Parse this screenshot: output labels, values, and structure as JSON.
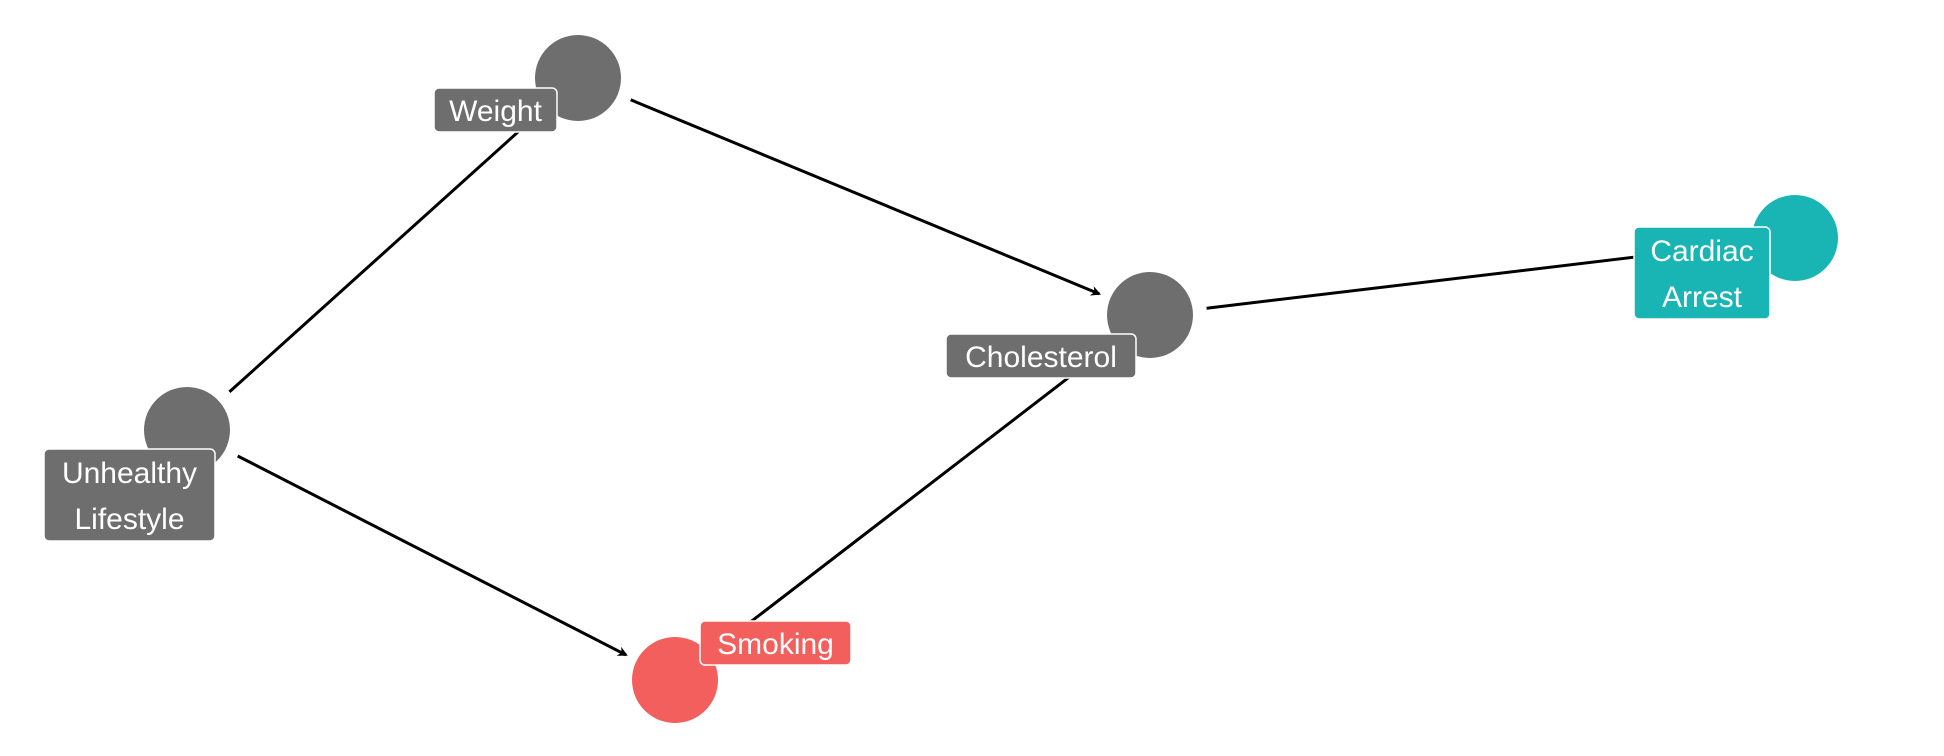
{
  "diagram": {
    "type": "dag",
    "colors": {
      "default": "#6e6e6e",
      "exposure": "#f25f5c",
      "outcome": "#19b5b5",
      "edge": "#000000",
      "label_text": "#ffffff"
    },
    "nodes": [
      {
        "id": "weight",
        "label_lines": [
          "Weight"
        ],
        "role": "default"
      },
      {
        "id": "unhealthy_lifestyle",
        "label_lines": [
          "Unhealthy",
          "Lifestyle"
        ],
        "role": "default"
      },
      {
        "id": "cholesterol",
        "label_lines": [
          "Cholesterol"
        ],
        "role": "default"
      },
      {
        "id": "smoking",
        "label_lines": [
          "Smoking"
        ],
        "role": "exposure"
      },
      {
        "id": "cardiac_arrest",
        "label_lines": [
          "Cardiac",
          "Arrest"
        ],
        "role": "outcome"
      }
    ],
    "edges": [
      {
        "from": "unhealthy_lifestyle",
        "to": "weight",
        "directed": true
      },
      {
        "from": "unhealthy_lifestyle",
        "to": "smoking",
        "directed": true
      },
      {
        "from": "weight",
        "to": "cholesterol",
        "directed": true
      },
      {
        "from": "smoking",
        "to": "cholesterol",
        "directed": false
      },
      {
        "from": "cholesterol",
        "to": "cardiac_arrest",
        "directed": false
      }
    ]
  }
}
